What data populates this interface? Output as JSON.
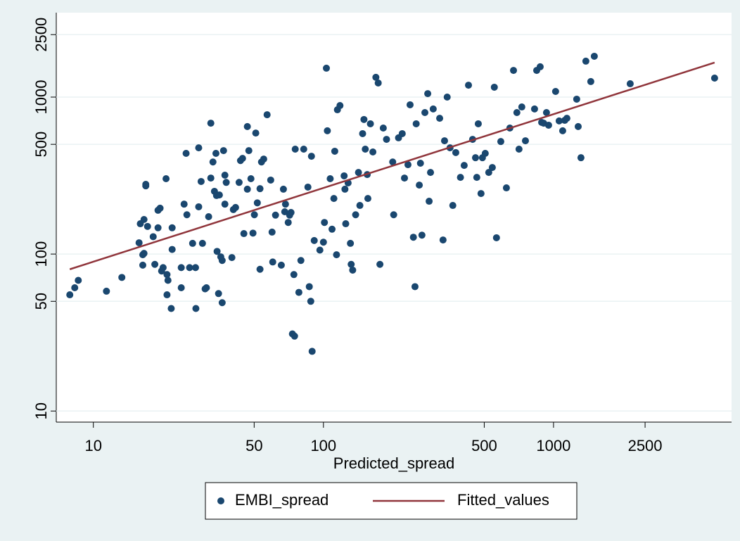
{
  "chart_data": {
    "type": "scatter",
    "x_label": "Predicted_spread",
    "xscale": "log",
    "yscale": "log",
    "ygrid": true,
    "legend": "bottom",
    "xlim": [
      6.9,
      5940
    ],
    "ylim": [
      8.5,
      3450
    ],
    "xticks": [
      10,
      50,
      100,
      500,
      1000,
      2500
    ],
    "yticks": [
      10,
      50,
      100,
      500,
      1000,
      2500
    ],
    "series": [
      {
        "name": "EMBI_spread",
        "type": "scatter",
        "color": "#1a476f",
        "x": [
          7.9,
          8.3,
          8.6,
          11.4,
          13.3,
          15.8,
          16.0,
          16.6,
          16.9,
          16.9,
          16.4,
          16.4,
          16.6,
          17.2,
          18.2,
          18.5,
          19.1,
          19.1,
          19.5,
          19.8,
          20.1,
          20.9,
          20.9,
          21.1,
          21.8,
          22.0,
          22.0,
          20.7,
          24.1,
          24.1,
          25.3,
          24.8,
          25.5,
          26.2,
          27.0,
          27.8,
          27.9,
          28.7,
          28.7,
          29.4,
          29.8,
          30.6,
          31.0,
          31.7,
          32.4,
          32.4,
          33.1,
          33.6,
          34.1,
          34.3,
          34.5,
          35.0,
          35.3,
          35.8,
          36.3,
          36.3,
          36.8,
          37.3,
          37.3,
          37.8,
          40.0,
          40.6,
          41.5,
          43.0,
          43.6,
          44.5,
          45.1,
          46.7,
          46.7,
          47.4,
          48.4,
          49.4,
          50.1,
          50.8,
          51.6,
          53.0,
          53.0,
          53.8,
          55.0,
          56.9,
          59.0,
          59.8,
          60.2,
          61.9,
          65.6,
          67.0,
          67.9,
          68.4,
          70.3,
          71.3,
          72.3,
          73.3,
          74.4,
          75.4,
          78.2,
          79.8,
          82.1,
          85.6,
          86.8,
          88.1,
          88.7,
          89.3,
          91.2,
          96.5,
          100,
          101,
          103,
          104,
          107,
          109,
          111,
          112,
          114,
          115,
          118,
          123,
          124,
          125,
          128,
          131,
          132,
          134,
          138,
          142,
          144,
          148,
          150,
          152,
          155,
          156,
          160,
          164,
          169,
          173,
          176,
          182,
          188,
          200,
          202,
          212,
          220,
          225,
          233,
          238,
          246,
          250,
          253,
          261,
          264,
          268,
          276,
          284,
          288,
          292,
          300,
          320,
          331,
          336,
          345,
          355,
          365,
          376,
          394,
          409,
          427,
          445,
          458,
          464,
          471,
          484,
          491,
          505,
          523,
          542,
          553,
          565,
          590,
          624,
          646,
          670,
          693,
          708,
          728,
          755,
          827,
          845,
          875,
          888,
          906,
          932,
          952,
          1021,
          1058,
          1096,
          1119,
          1143,
          1261,
          1280,
          1316,
          1382,
          1452,
          1504,
          2154,
          5012,
          74.9
        ],
        "values": [
          55,
          61,
          68,
          58,
          71,
          118,
          156,
          166,
          272,
          278,
          99,
          85,
          101,
          150,
          129,
          86,
          147,
          190,
          196,
          78,
          82,
          74,
          55,
          68,
          45,
          107,
          147,
          302,
          61,
          82,
          438,
          208,
          178,
          82,
          117,
          82,
          45,
          200,
          475,
          290,
          117,
          60,
          61,
          173,
          682,
          305,
          386,
          251,
          438,
          236,
          104,
          56,
          238,
          96,
          49,
          91,
          456,
          318,
          208,
          286,
          95,
          192,
          198,
          286,
          394,
          407,
          135,
          259,
          649,
          456,
          302,
          136,
          178,
          590,
          212,
          80,
          261,
          386,
          403,
          772,
          296,
          138,
          89,
          177,
          85,
          259,
          186,
          208,
          159,
          177,
          184,
          31,
          74,
          466,
          57,
          91,
          466,
          267,
          62,
          50,
          420,
          24,
          122,
          106,
          119,
          159,
          1528,
          610,
          302,
          144,
          226,
          452,
          99,
          830,
          883,
          315,
          259,
          156,
          284,
          117,
          86,
          79,
          178,
          331,
          204,
          585,
          720,
          466,
          321,
          226,
          676,
          447,
          1337,
          1230,
          86,
          635,
          538,
          386,
          178,
          550,
          585,
          305,
          371,
          893,
          128,
          62,
          676,
          275,
          379,
          132,
          797,
          1052,
          217,
          331,
          840,
          733,
          123,
          527,
          1000,
          475,
          204,
          443,
          308,
          367,
          1191,
          538,
          411,
          308,
          676,
          243,
          411,
          438,
          331,
          356,
          1156,
          127,
          521,
          264,
          635,
          1479,
          797,
          466,
          865,
          527,
          840,
          1479,
          1560,
          690,
          682,
          797,
          662,
          1086,
          705,
          610,
          711,
          733,
          970,
          649,
          411,
          1694,
          1256,
          1820,
          1216,
          1321,
          30
        ]
      },
      {
        "name": "Fitted_values",
        "type": "line",
        "color": "#90353b",
        "x": [
          7.9,
          5012
        ],
        "values": [
          80,
          1660
        ]
      }
    ]
  }
}
